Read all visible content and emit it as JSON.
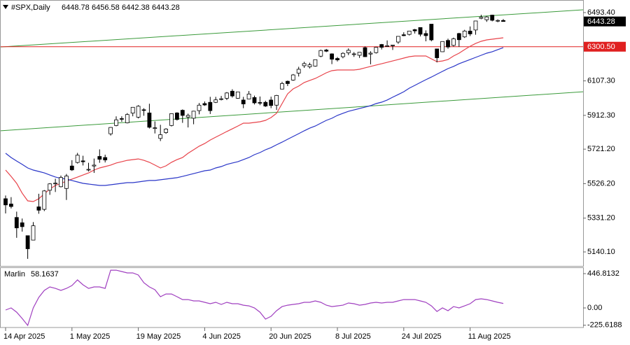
{
  "chart_data": [
    {
      "type": "candlestick",
      "title": "#SPX,Daily",
      "categories": [
        "14 Apr 2025",
        null,
        null,
        null,
        null,
        null,
        null,
        null,
        null,
        null,
        null,
        null,
        "1 May 2025",
        null,
        null,
        null,
        null,
        null,
        null,
        null,
        null,
        null,
        null,
        null,
        "19 May 2025",
        null,
        null,
        null,
        null,
        null,
        null,
        null,
        null,
        null,
        null,
        null,
        "4 Jun 2025",
        null,
        null,
        null,
        null,
        null,
        null,
        null,
        null,
        null,
        null,
        null,
        "20 Jun 2025",
        null,
        null,
        null,
        null,
        null,
        null,
        null,
        null,
        null,
        null,
        null,
        "8 Jul 2025",
        null,
        null,
        null,
        null,
        null,
        null,
        null,
        null,
        null,
        null,
        null,
        "24 Jul 2025",
        null,
        null,
        null,
        null,
        null,
        null,
        null,
        null,
        null,
        null,
        null,
        "11 Aug 2025",
        null,
        null,
        null,
        null,
        null,
        null
      ],
      "open": [
        5441,
        5411,
        5335,
        5305,
        5232,
        5207,
        5395,
        5381,
        5489,
        5529,
        5509,
        5499,
        5626,
        5646,
        5655,
        5607,
        5626,
        5680,
        5674,
        5808,
        5855,
        5894,
        5870,
        5925,
        5902,
        5944,
        5926,
        5841,
        5782,
        5815,
        5855,
        5926,
        5941,
        5903,
        5896,
        5939,
        5979,
        5986,
        5986,
        6005,
        6009,
        6049,
        6009,
        5999,
        6005,
        6013,
        5985,
        5986,
        5999,
        5970,
        6061,
        6105,
        6112,
        6151,
        6193,
        6187,
        6191,
        6247,
        6282,
        6260,
        6234,
        6244,
        6266,
        6256,
        6252,
        6295,
        6259,
        6267,
        6313,
        6304,
        6307,
        6327,
        6368,
        6370,
        6397,
        6409,
        6375,
        6428,
        6288,
        6272,
        6336,
        6308,
        6375,
        6356,
        6389,
        6395,
        6461,
        6453,
        6479,
        6445,
        6448.78
      ],
      "high": [
        5459,
        5450,
        5368,
        5329,
        5233,
        5309,
        5469,
        5490,
        5529,
        5554,
        5572,
        5581,
        5659,
        5700,
        5684,
        5644,
        5668,
        5720,
        5690,
        5846,
        5907,
        5907,
        5925,
        5959,
        5970,
        5953,
        5978,
        5878,
        5859,
        5840,
        5924,
        5930,
        5946,
        5922,
        5938,
        5982,
        5991,
        6017,
        6017,
        6022,
        6044,
        6060,
        6046,
        6017,
        6050,
        6024,
        6019,
        5995,
        6018,
        6028,
        6102,
        6109,
        6146,
        6187,
        6215,
        6210,
        6227,
        6284,
        6288,
        6263,
        6242,
        6269,
        6291,
        6270,
        6270,
        6302,
        6275,
        6299,
        6316,
        6336,
        6311,
        6359,
        6382,
        6390,
        6401,
        6410,
        6393,
        6428,
        6288,
        6330,
        6346,
        6352,
        6379,
        6396,
        6415,
        6446,
        6481,
        6474,
        6481,
        6455,
        6456.58
      ],
      "low": [
        5358,
        5386,
        5220,
        5255,
        5101,
        5207,
        5356,
        5371,
        5463,
        5479,
        5505,
        5434,
        5598,
        5640,
        5629,
        5595,
        5587,
        5644,
        5646,
        5798,
        5851,
        5876,
        5867,
        5907,
        5895,
        5910,
        5838,
        5810,
        5767,
        5808,
        5850,
        5883,
        5870,
        5844,
        5862,
        5918,
        5966,
        5920,
        5982,
        5997,
        5999,
        6013,
        6006,
        5953,
        6005,
        5974,
        5970,
        5960,
        5953,
        5943,
        6059,
        6078,
        6108,
        6132,
        6181,
        6178,
        6188,
        6241,
        6270,
        6202,
        6217,
        6235,
        6253,
        6243,
        6237,
        6242,
        6201,
        6262,
        6285,
        6302,
        6282,
        6317,
        6360,
        6364,
        6375,
        6359,
        6331,
        6331,
        6212,
        6271,
        6289,
        6302,
        6300,
        6350,
        6361,
        6368,
        6456,
        6441,
        6444,
        6439,
        6442.38
      ],
      "close": [
        5406,
        5397,
        5276,
        5283,
        5158,
        5288,
        5376,
        5485,
        5525,
        5529,
        5561,
        5569,
        5604,
        5687,
        5650,
        5607,
        5631,
        5664,
        5660,
        5844,
        5887,
        5893,
        5917,
        5958,
        5964,
        5940,
        5845,
        5842,
        5803,
        5835,
        5922,
        5889,
        5912,
        5912,
        5936,
        5970,
        5971,
        5939,
        6000,
        6006,
        6039,
        6022,
        6045,
        5977,
        6033,
        5983,
        5981,
        5965,
        5968,
        6025,
        6092,
        6092,
        6141,
        6173,
        6205,
        6198,
        6227,
        6279,
        6275,
        6230,
        6226,
        6263,
        6280,
        6260,
        6269,
        6244,
        6264,
        6297,
        6297,
        6306,
        6310,
        6359,
        6363,
        6389,
        6390,
        6371,
        6363,
        6339,
        6238,
        6330,
        6299,
        6345,
        6340,
        6389,
        6373,
        6446,
        6467,
        6469,
        6450,
        6449,
        6443.28
      ],
      "up_color": "#ffffff",
      "down_color": "#000000",
      "overlays": [
        {
          "color": "#e8434a",
          "values": [
            5603,
            5567,
            5528,
            5472,
            5429,
            5425,
            5441,
            5468,
            5496,
            5516,
            5528,
            5540,
            5552,
            5563,
            5575,
            5587,
            5603,
            5615,
            5623,
            5631,
            5643,
            5650,
            5658,
            5662,
            5666,
            5658,
            5647,
            5631,
            5615,
            5627,
            5647,
            5662,
            5674,
            5698,
            5718,
            5738,
            5753,
            5773,
            5789,
            5805,
            5821,
            5836,
            5852,
            5868,
            5868,
            5872,
            5876,
            5884,
            5900,
            5924,
            5979,
            6034,
            6062,
            6078,
            6098,
            6110,
            6121,
            6137,
            6153,
            6165,
            6169,
            6169,
            6169,
            6169,
            6173,
            6181,
            6189,
            6197,
            6204,
            6212,
            6220,
            6228,
            6236,
            6244,
            6248,
            6248,
            6248,
            6232,
            6216,
            6220,
            6228,
            6248,
            6264,
            6284,
            6303,
            6319,
            6331,
            6339,
            6343,
            6347,
            6351
          ]
        },
        {
          "color": "#2a36c8",
          "values": [
            5698,
            5674,
            5654,
            5635,
            5615,
            5603,
            5595,
            5587,
            5575,
            5564,
            5556,
            5552,
            5544,
            5536,
            5528,
            5524,
            5520,
            5516,
            5516,
            5520,
            5524,
            5528,
            5532,
            5532,
            5536,
            5540,
            5544,
            5544,
            5548,
            5552,
            5556,
            5560,
            5567,
            5575,
            5583,
            5591,
            5599,
            5603,
            5615,
            5623,
            5635,
            5643,
            5650,
            5662,
            5674,
            5690,
            5702,
            5718,
            5730,
            5746,
            5761,
            5777,
            5793,
            5809,
            5825,
            5840,
            5852,
            5868,
            5884,
            5896,
            5912,
            5924,
            5935,
            5943,
            5951,
            5959,
            5967,
            5979,
            5987,
            5999,
            6015,
            6030,
            6046,
            6066,
            6082,
            6098,
            6114,
            6129,
            6145,
            6161,
            6177,
            6189,
            6204,
            6216,
            6228,
            6240,
            6252,
            6264,
            6272,
            6284,
            6295
          ]
        }
      ],
      "trendlines": [
        {
          "color": "#3a9a3a",
          "left": 6299,
          "right": 6509
        },
        {
          "color": "#3a9a3a",
          "left": 5825,
          "right": 6046
        }
      ],
      "hlines": [
        {
          "value": 6300.5,
          "label": "6300.50",
          "color": "#e02020"
        }
      ],
      "ylim": [
        5061,
        6564.6
      ],
      "yticks": [
        {
          "value": 6493.4,
          "label": "6493.40"
        },
        {
          "value": 6107.3,
          "label": "6107.30"
        },
        {
          "value": 5912.3,
          "label": "5912.30"
        },
        {
          "value": 5721.2,
          "label": "5721.20"
        },
        {
          "value": 5526.2,
          "label": "5526.20"
        },
        {
          "value": 5331.2,
          "label": "5331.20"
        },
        {
          "value": 5140.1,
          "label": "5140.10"
        }
      ]
    },
    {
      "type": "line",
      "name": "Marlin",
      "color": "#a040c0",
      "values": [
        -27,
        0,
        -55,
        -137,
        -228,
        0,
        137,
        228,
        274,
        255,
        228,
        255,
        292,
        365,
        301,
        255,
        274,
        274,
        255,
        492,
        492,
        474,
        456,
        456,
        429,
        328,
        274,
        237,
        146,
        182,
        182,
        146,
        109,
        109,
        91,
        91,
        73,
        55,
        73,
        46,
        73,
        55,
        55,
        36,
        27,
        0,
        -55,
        -146,
        -109,
        -36,
        18,
        36,
        46,
        55,
        73,
        73,
        91,
        73,
        36,
        18,
        27,
        36,
        64,
        55,
        36,
        46,
        64,
        73,
        64,
        73,
        73,
        91,
        109,
        109,
        109,
        91,
        73,
        27,
        -46,
        0,
        -36,
        18,
        0,
        27,
        55,
        109,
        119,
        109,
        91,
        73,
        58.1637
      ],
      "ylim": [
        -255,
        529
      ],
      "yticks": [
        446.8132,
        {
          "value": 0,
          "label": "0.00"
        },
        -225.6188
      ]
    }
  ]
}
